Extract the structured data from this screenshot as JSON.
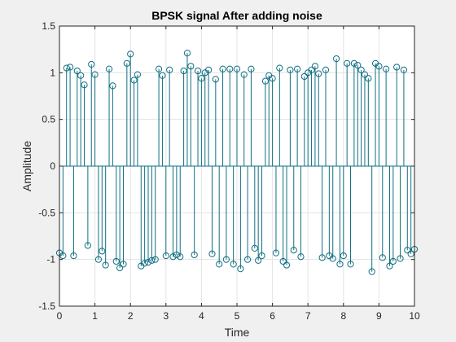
{
  "chart_data": {
    "type": "stem",
    "title": "BPSK signal After adding noise",
    "xlabel": "Time",
    "ylabel": "Amplitude",
    "xlim": [
      0,
      10
    ],
    "ylim": [
      -1.5,
      1.5
    ],
    "grid": true,
    "color": "#0f6f82",
    "xticks": [
      0,
      1,
      2,
      3,
      4,
      5,
      6,
      7,
      8,
      9,
      10
    ],
    "yticks": [
      -1.5,
      -1,
      -0.5,
      0,
      0.5,
      1,
      1.5
    ],
    "xtick_labels": [
      "0",
      "1",
      "2",
      "3",
      "4",
      "5",
      "6",
      "7",
      "8",
      "9",
      "10"
    ],
    "ytick_labels": [
      "-1.5",
      "-1",
      "-0.5",
      "0",
      "0.5",
      "1",
      "1.5"
    ],
    "series": [
      {
        "x": [
          0.0,
          0.1,
          0.2,
          0.3,
          0.4,
          0.5,
          0.6,
          0.7,
          0.8,
          0.9,
          1.0,
          1.1,
          1.2,
          1.3,
          1.4,
          1.5,
          1.6,
          1.7,
          1.8,
          1.9,
          2.0,
          2.1,
          2.2,
          2.3,
          2.4,
          2.5,
          2.6,
          2.7,
          2.8,
          2.9,
          3.0,
          3.1,
          3.2,
          3.3,
          3.4,
          3.5,
          3.6,
          3.7,
          3.8,
          3.9,
          4.0,
          4.1,
          4.2,
          4.3,
          4.4,
          4.5,
          4.6,
          4.7,
          4.8,
          4.9,
          5.0,
          5.1,
          5.2,
          5.3,
          5.4,
          5.5,
          5.6,
          5.7,
          5.8,
          5.9,
          6.0,
          6.1,
          6.2,
          6.3,
          6.4,
          6.5,
          6.6,
          6.7,
          6.8,
          6.9,
          7.0,
          7.1,
          7.2,
          7.3,
          7.4,
          7.5,
          7.6,
          7.7,
          7.8,
          7.9,
          8.0,
          8.1,
          8.2,
          8.3,
          8.4,
          8.5,
          8.6,
          8.7,
          8.8,
          8.9,
          9.0,
          9.1,
          9.2,
          9.3,
          9.4,
          9.5,
          9.6,
          9.7,
          9.8,
          9.9,
          10.0
        ],
        "y": [
          -0.93,
          -0.96,
          1.05,
          1.06,
          -0.96,
          1.02,
          0.97,
          0.87,
          -0.85,
          1.09,
          0.98,
          -1.0,
          -0.91,
          -1.06,
          1.04,
          0.86,
          -1.02,
          -1.09,
          -1.05,
          1.1,
          1.2,
          0.92,
          0.98,
          -1.07,
          -1.04,
          -1.03,
          -1.01,
          -1.0,
          1.04,
          0.97,
          -0.96,
          1.03,
          -0.97,
          -0.95,
          -0.97,
          1.02,
          1.21,
          1.07,
          -0.95,
          1.02,
          0.94,
          1.0,
          1.03,
          -0.94,
          0.93,
          -1.05,
          1.04,
          -1.0,
          1.04,
          -1.05,
          1.04,
          -1.1,
          0.98,
          -1.0,
          1.04,
          -0.88,
          -1.01,
          -0.96,
          0.91,
          0.97,
          0.94,
          -0.93,
          1.05,
          -1.02,
          -1.06,
          1.03,
          -0.9,
          1.04,
          -0.97,
          0.96,
          1.0,
          1.03,
          1.07,
          0.99,
          -0.98,
          1.03,
          -0.96,
          -0.99,
          1.15,
          -1.05,
          -0.96,
          1.1,
          -1.05,
          1.1,
          1.08,
          1.03,
          0.98,
          0.94,
          -1.13,
          1.1,
          1.07,
          -0.98,
          1.04,
          -1.07,
          -1.02,
          1.06,
          -0.99,
          1.03,
          -0.9,
          -0.94,
          -0.89
        ]
      }
    ]
  }
}
